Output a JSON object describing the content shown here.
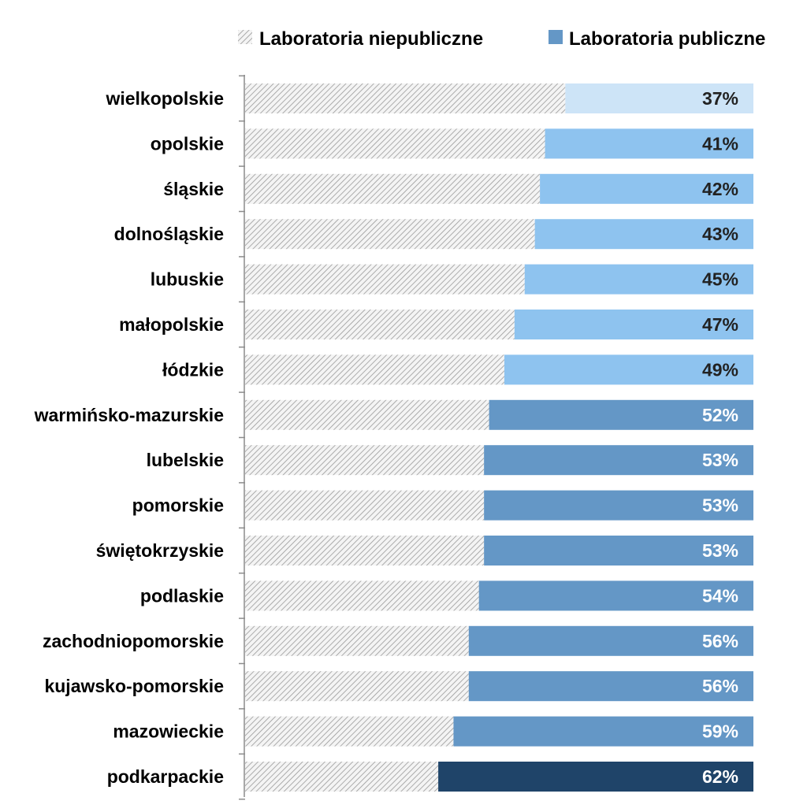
{
  "chart_data": {
    "type": "bar",
    "orientation": "horizontal",
    "stacked": true,
    "normalized": true,
    "categories": [
      "wielkopolskie",
      "opolskie",
      "śląskie",
      "dolnośląskie",
      "lubuskie",
      "małopolskie",
      "łódzkie",
      "warmińsko-mazurskie",
      "lubelskie",
      "pomorskie",
      "świętokrzyskie",
      "podlaskie",
      "zachodniopomorskie",
      "kujawsko-pomorskie",
      "mazowieckie",
      "podkarpackie"
    ],
    "series": [
      {
        "name": "Laboratoria niepubliczne",
        "values": [
          63,
          59,
          58,
          57,
          55,
          53,
          51,
          48,
          47,
          47,
          47,
          46,
          44,
          44,
          41,
          38
        ],
        "color": "#b5b5b5",
        "pattern": "diagonal-hatch"
      },
      {
        "name": "Laboratoria publiczne",
        "values": [
          37,
          41,
          42,
          43,
          45,
          47,
          49,
          52,
          53,
          53,
          53,
          54,
          56,
          56,
          59,
          62
        ],
        "color": "#6497c6"
      }
    ],
    "data_labels": [
      "37%",
      "41%",
      "42%",
      "43%",
      "45%",
      "47%",
      "49%",
      "52%",
      "53%",
      "53%",
      "53%",
      "54%",
      "56%",
      "56%",
      "59%",
      "62%"
    ],
    "xlim": [
      0,
      100
    ],
    "legend": {
      "position": "top-right"
    },
    "grid": false,
    "colors": {
      "public_low": "#cde4f7",
      "public_mid": "#8ec3ef",
      "public_high": "#6497c6",
      "public_top": "#1f4469",
      "label_dark": "#222222",
      "label_light": "#ffffff",
      "hatch_line": "#9a9a9a"
    }
  }
}
